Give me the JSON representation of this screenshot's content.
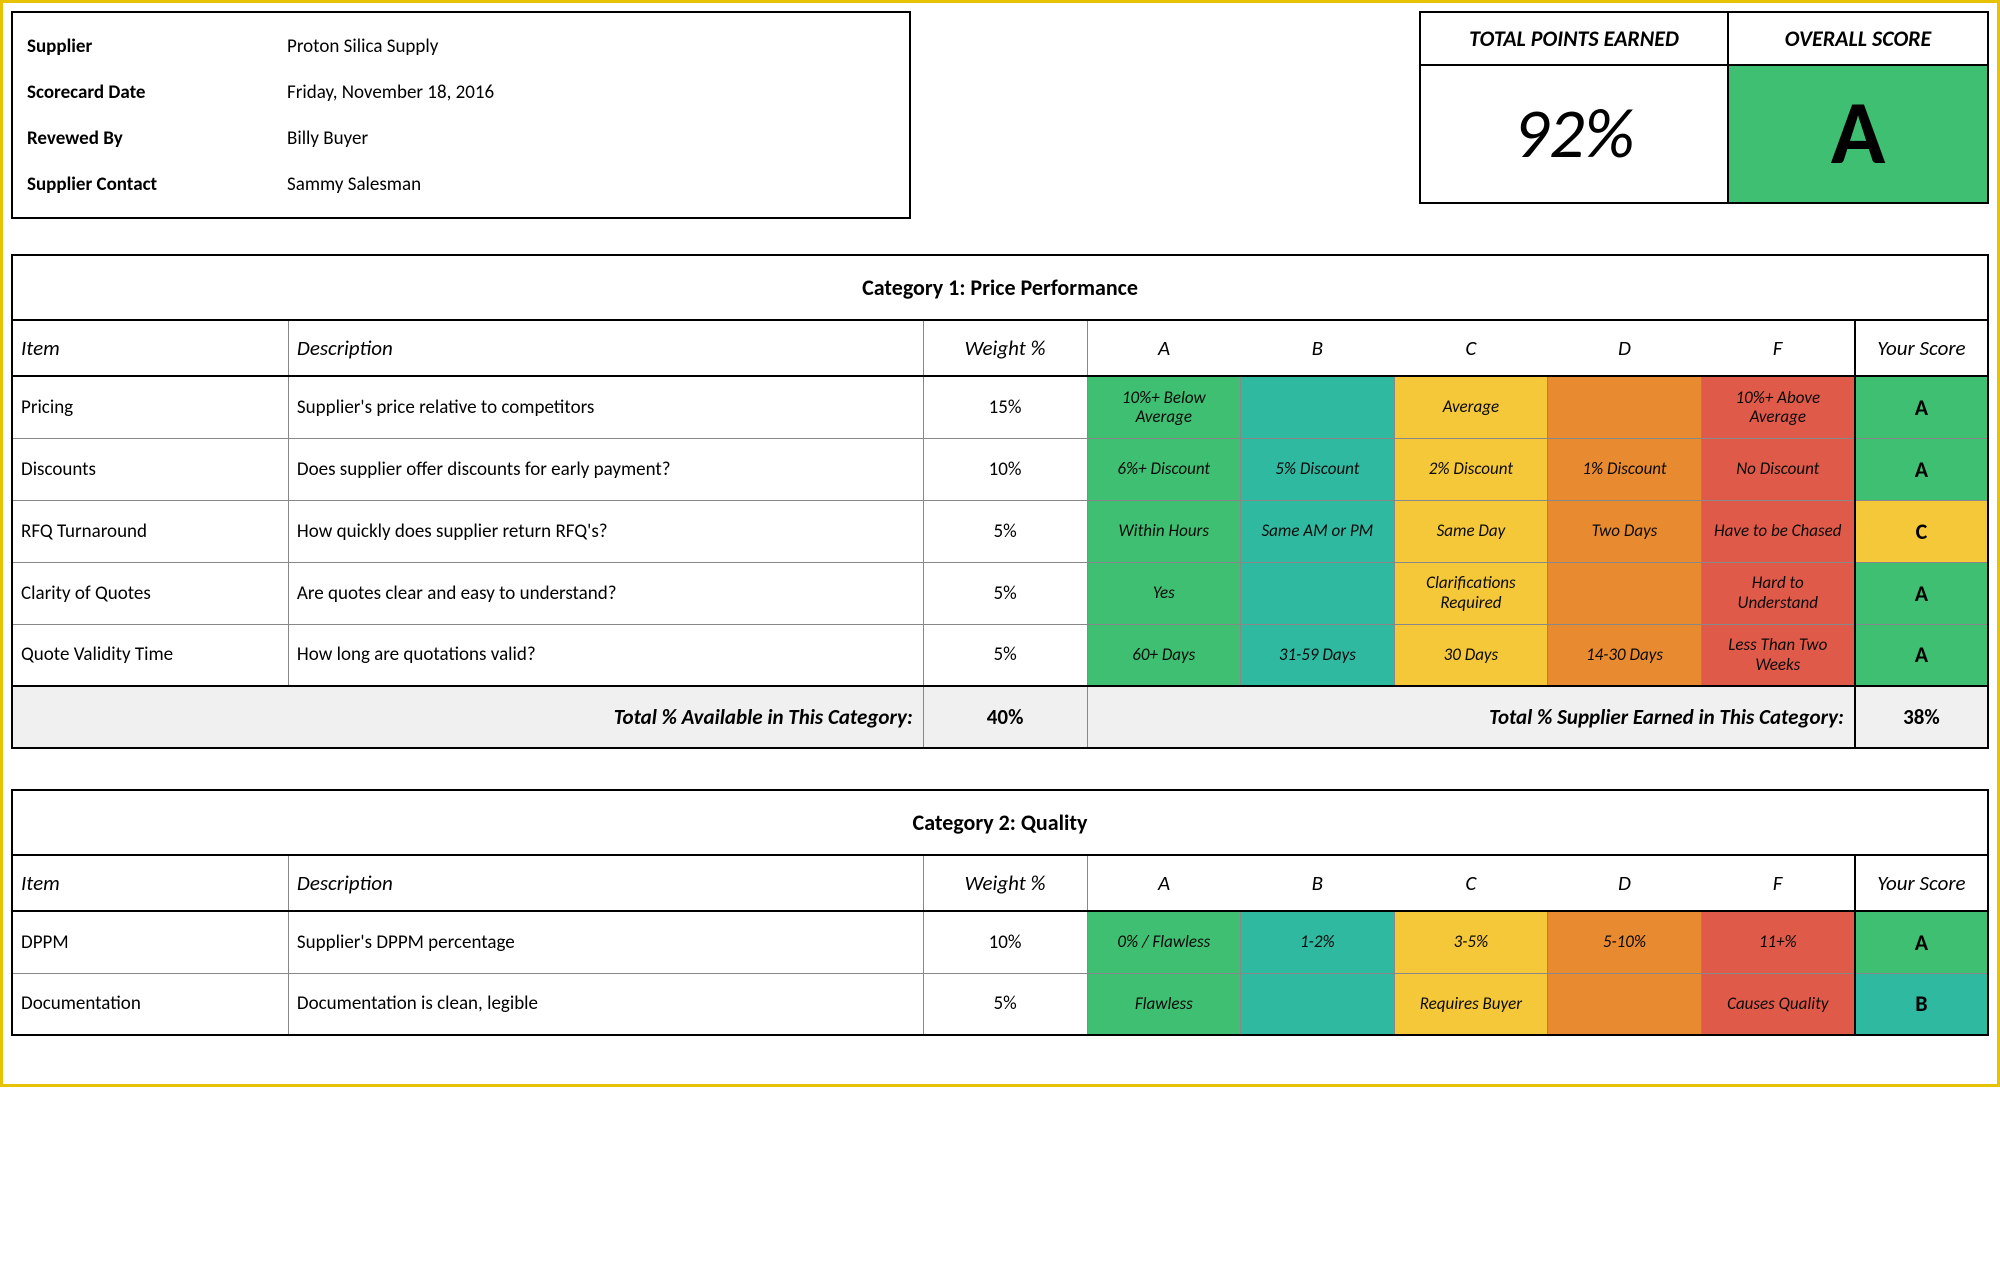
{
  "colors": {
    "A": "#3fbf72",
    "B": "#2fb9a0",
    "C": "#f4c838",
    "D": "#e88a2f",
    "F": "#e05a4a",
    "summary_bg": "#f0f0f0",
    "page_border": "#e6c200",
    "text": "#000000"
  },
  "header": {
    "info": [
      {
        "label": "Supplier",
        "value": "Proton Silica Supply"
      },
      {
        "label": "Scorecard Date",
        "value": "Friday, November 18, 2016"
      },
      {
        "label": "Revewed By",
        "value": "Billy Buyer"
      },
      {
        "label": "Supplier Contact",
        "value": "Sammy Salesman"
      }
    ],
    "points_label": "TOTAL POINTS EARNED",
    "points_value": "92%",
    "overall_label": "OVERALL SCORE",
    "overall_grade": "A"
  },
  "columns": {
    "item": "Item",
    "description": "Description",
    "weight": "Weight %",
    "grades": [
      "A",
      "B",
      "C",
      "D",
      "F"
    ],
    "your_score": "Your Score"
  },
  "summary_labels": {
    "available": "Total % Available in This Category:",
    "earned": "Total % Supplier Earned in This Category:"
  },
  "categories": [
    {
      "title": "Category 1: Price Performance",
      "rows": [
        {
          "item": "Pricing",
          "desc": "Supplier's price relative to competitors",
          "weight": "15%",
          "cells": [
            "10%+ Below Average",
            "",
            "Average",
            "",
            "10%+ Above Average"
          ],
          "score": "A"
        },
        {
          "item": "Discounts",
          "desc": "Does supplier offer discounts for early payment?",
          "weight": "10%",
          "cells": [
            "6%+ Discount",
            "5% Discount",
            "2% Discount",
            "1% Discount",
            "No Discount"
          ],
          "score": "A"
        },
        {
          "item": "RFQ Turnaround",
          "desc": "How quickly does supplier return RFQ's?",
          "weight": "5%",
          "cells": [
            "Within Hours",
            "Same AM or PM",
            "Same Day",
            "Two Days",
            "Have to be Chased"
          ],
          "score": "C"
        },
        {
          "item": "Clarity of Quotes",
          "desc": "Are quotes clear and easy to understand?",
          "weight": "5%",
          "cells": [
            "Yes",
            "",
            "Clarifications Required",
            "",
            "Hard to Understand"
          ],
          "score": "A"
        },
        {
          "item": "Quote Validity Time",
          "desc": "How long are quotations valid?",
          "weight": "5%",
          "cells": [
            "60+ Days",
            "31-59 Days",
            "30 Days",
            "14-30 Days",
            "Less Than Two Weeks"
          ],
          "score": "A"
        }
      ],
      "total_available": "40%",
      "total_earned": "38%"
    },
    {
      "title": "Category 2: Quality",
      "rows": [
        {
          "item": "DPPM",
          "desc": "Supplier's DPPM percentage",
          "weight": "10%",
          "cells": [
            "0% / Flawless",
            "1-2%",
            "3-5%",
            "5-10%",
            "11+%"
          ],
          "score": "A"
        },
        {
          "item": "Documentation",
          "desc": "Documentation is clean, legible",
          "weight": "5%",
          "cells": [
            "Flawless",
            "",
            "Requires Buyer",
            "",
            "Causes Quality"
          ],
          "score": "B"
        }
      ]
    }
  ]
}
